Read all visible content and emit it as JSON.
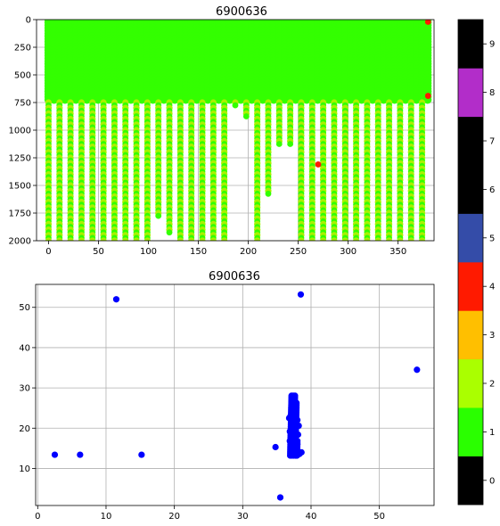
{
  "chart_data": [
    {
      "type": "scatter",
      "title": "6900636",
      "xlabel": "",
      "ylabel": "",
      "xlim": [
        -12,
        386
      ],
      "ylim": [
        2000,
        0
      ],
      "y_inverted": true,
      "grid": true,
      "xticks": [
        "0",
        "50",
        "100",
        "150",
        "200",
        "250",
        "300",
        "350"
      ],
      "yticks": [
        "0",
        "250",
        "500",
        "750",
        "1000",
        "1250",
        "1500",
        "1750",
        "2000"
      ],
      "profiles": {
        "count": 35,
        "x_first": 0,
        "x_step": 11,
        "shallow_band_max_depth": 740,
        "point_spacing": 50,
        "max_depth": [
          2000,
          2000,
          2000,
          2000,
          2000,
          2000,
          2000,
          2000,
          2000,
          2000,
          1760,
          1900,
          2000,
          2000,
          2000,
          2000,
          2000,
          760,
          860,
          2000,
          1590,
          1140,
          1110,
          2000,
          2000,
          2000,
          2000,
          2000,
          2000,
          2000,
          2000,
          2000,
          2000,
          2000,
          2000
        ]
      },
      "flagged_points": [
        {
          "x": 270,
          "y": 1310,
          "flag": 4
        },
        {
          "x": 380,
          "y": 690,
          "flag": 4
        },
        {
          "x": 380,
          "y": 20,
          "flag": 4
        }
      ],
      "colorbar": {
        "ticks": [
          "0",
          "1",
          "2",
          "3",
          "4",
          "5",
          "6",
          "7",
          "8",
          "9"
        ],
        "colors": [
          "#000000",
          "#2aff00",
          "#aaff00",
          "#ffbf00",
          "#ff1a00",
          "#344ca8",
          "#000000",
          "#000000",
          "#b22dc9",
          "#000000"
        ]
      },
      "colors": {
        "good": "#33ff00",
        "probably_good": "#aaf000",
        "bad": "#ff1a00"
      }
    },
    {
      "type": "scatter",
      "title": "6900636",
      "xlabel": "",
      "ylabel": "",
      "xlim": [
        -0.3,
        58
      ],
      "ylim": [
        0.8,
        55.7
      ],
      "grid": true,
      "xticks": [
        "0",
        "10",
        "20",
        "30",
        "40",
        "50"
      ],
      "yticks": [
        "10",
        "20",
        "30",
        "40",
        "50"
      ],
      "color": "#0000ff",
      "points": [
        {
          "x": 2.5,
          "y": 13.4
        },
        {
          "x": 6.2,
          "y": 13.4
        },
        {
          "x": 15.2,
          "y": 13.4
        },
        {
          "x": 11.5,
          "y": 52.0
        },
        {
          "x": 38.5,
          "y": 53.2
        },
        {
          "x": 55.5,
          "y": 34.5
        },
        {
          "x": 34.8,
          "y": 15.3
        },
        {
          "x": 35.5,
          "y": 2.8
        },
        {
          "x": 37.4,
          "y": 27.8
        },
        {
          "x": 37.6,
          "y": 26.5
        },
        {
          "x": 37.2,
          "y": 25.5
        },
        {
          "x": 37.8,
          "y": 24.2
        },
        {
          "x": 37.0,
          "y": 23.0
        },
        {
          "x": 38.0,
          "y": 22.0
        },
        {
          "x": 37.3,
          "y": 21.0
        },
        {
          "x": 37.7,
          "y": 20.0
        },
        {
          "x": 36.9,
          "y": 19.2
        },
        {
          "x": 38.1,
          "y": 18.4
        },
        {
          "x": 37.5,
          "y": 17.6
        },
        {
          "x": 36.9,
          "y": 16.8
        },
        {
          "x": 38.0,
          "y": 16.0
        },
        {
          "x": 37.2,
          "y": 15.4
        },
        {
          "x": 37.9,
          "y": 14.8
        },
        {
          "x": 37.4,
          "y": 14.2
        },
        {
          "x": 38.3,
          "y": 13.6
        },
        {
          "x": 37.8,
          "y": 13.2
        },
        {
          "x": 38.6,
          "y": 14.0
        },
        {
          "x": 36.8,
          "y": 22.5
        },
        {
          "x": 38.2,
          "y": 20.6
        },
        {
          "x": 37.1,
          "y": 18.0
        }
      ],
      "cluster": {
        "x_min": 36.8,
        "x_max": 38.2,
        "y_min": 13.2,
        "y_max": 28.2
      }
    }
  ]
}
